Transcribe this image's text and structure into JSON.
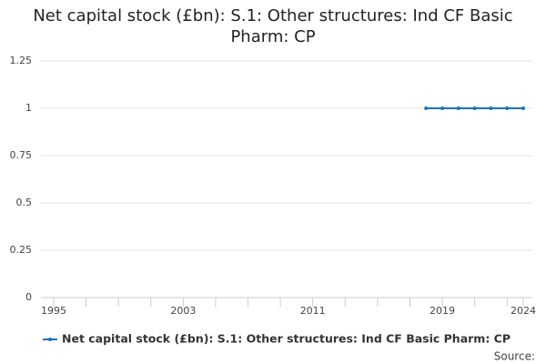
{
  "chart_data": {
    "type": "line",
    "title": "Net capital stock (£bn): S.1: Other structures: Ind CF Basic Pharm: CP",
    "x": [
      2018,
      2019,
      2020,
      2021,
      2022,
      2023,
      2024
    ],
    "series": [
      {
        "name": "Net capital stock (£bn): S.1: Other structures: Ind CF Basic Pharm: CP",
        "color": "#1a72b8",
        "values": [
          1,
          1,
          1,
          1,
          1,
          1,
          1
        ]
      }
    ],
    "xlim": [
      1995,
      2024
    ],
    "xticks": [
      1995,
      2003,
      2011,
      2019,
      2024
    ],
    "xminor_ticks": [
      1997,
      1999,
      2001,
      2005,
      2007,
      2009,
      2013,
      2015,
      2017,
      2021,
      2023
    ],
    "ylim": [
      0,
      1.25
    ],
    "yticks": [
      0,
      0.25,
      0.5,
      0.75,
      1,
      1.25
    ],
    "grid": true,
    "legend": "bottom",
    "source": "Source:"
  }
}
